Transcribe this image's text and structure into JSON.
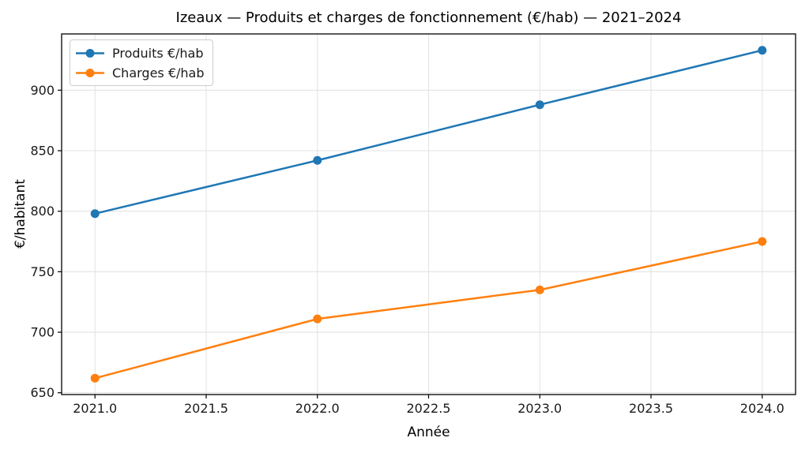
{
  "figure": {
    "background": "#ffffff"
  },
  "chart_data": {
    "type": "line",
    "title": "Izeaux — Produits et charges de fonctionnement (€/hab) — 2021–2024",
    "xlabel": "Année",
    "ylabel": "€/habitant",
    "x": [
      2021,
      2022,
      2023,
      2024
    ],
    "series": [
      {
        "name": "Produits €/hab",
        "color": "#1f77b4",
        "values": [
          798,
          842,
          888,
          933
        ]
      },
      {
        "name": "Charges €/hab",
        "color": "#ff7f0e",
        "values": [
          662,
          711,
          735,
          775
        ]
      }
    ],
    "xlim": [
      2020.85,
      2024.15
    ],
    "ylim": [
      648.5,
      946.5
    ],
    "xticks": [
      2021.0,
      2021.5,
      2022.0,
      2022.5,
      2023.0,
      2023.5,
      2024.0
    ],
    "xtick_labels": [
      "2021.0",
      "2021.5",
      "2022.0",
      "2022.5",
      "2023.0",
      "2023.5",
      "2024.0"
    ],
    "yticks": [
      650,
      700,
      750,
      800,
      850,
      900
    ],
    "ytick_labels": [
      "650",
      "700",
      "750",
      "800",
      "850",
      "900"
    ],
    "grid": true,
    "grid_color": "#e3e3e3",
    "spine_color": "#000000",
    "legend_position": "upper-left",
    "legend_labels": [
      "Produits €/hab",
      "Charges €/hab"
    ]
  }
}
